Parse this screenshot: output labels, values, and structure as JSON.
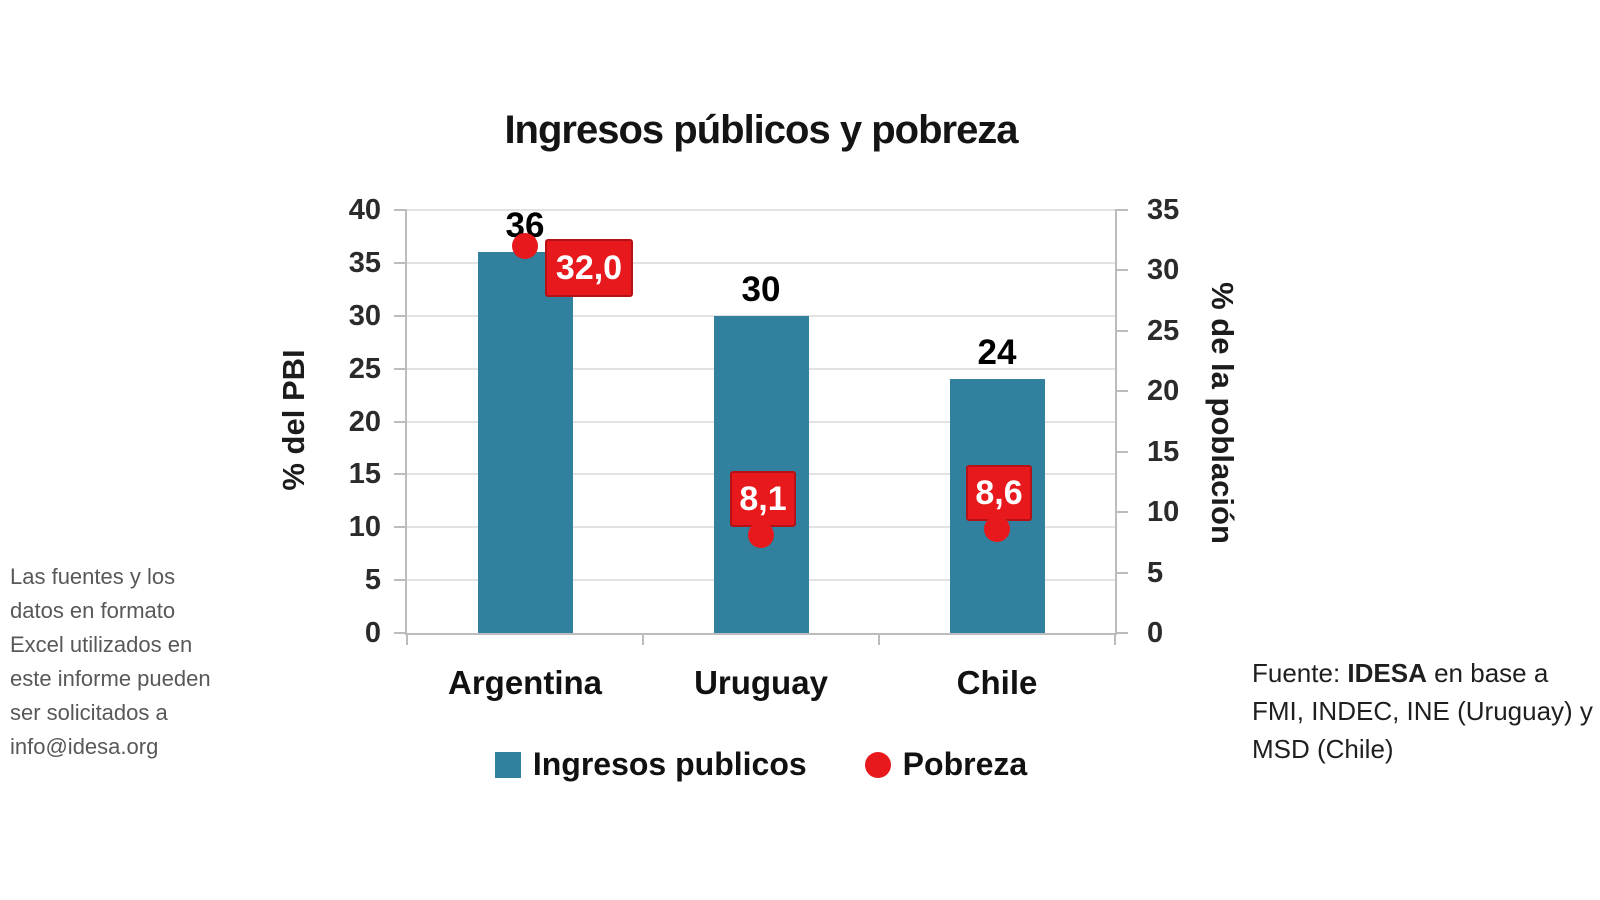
{
  "title": "Ingresos públicos y pobreza",
  "left_note": "Las fuentes y los\ndatos en formato\nExcel utilizados en\neste informe pueden\nser solicitados a\ninfo@idesa.org",
  "source": {
    "prefix": "Fuente: ",
    "org": "IDESA",
    "rest": " en base a FMI, INDEC, INE (Uruguay) y MSD (Chile)"
  },
  "chart_data": {
    "type": "bar",
    "title": "Ingresos públicos y pobreza",
    "categories": [
      "Argentina",
      "Uruguay",
      "Chile"
    ],
    "series": [
      {
        "name": "Ingresos publicos",
        "type": "bar",
        "axis": "left",
        "values": [
          36,
          30,
          24
        ],
        "labels": [
          "36",
          "30",
          "24"
        ],
        "color": "#31819E"
      },
      {
        "name": "Pobreza",
        "type": "scatter",
        "axis": "right",
        "values": [
          32.0,
          8.1,
          8.6
        ],
        "labels": [
          "32,0",
          "8,1",
          "8,6"
        ],
        "color": "#E8191D",
        "label_border_color": "#B61116",
        "label_placement": [
          "right",
          "above",
          "above"
        ]
      }
    ],
    "left_axis": {
      "title": "% del PBI",
      "min": 0,
      "max": 40,
      "ticks": [
        0,
        5,
        10,
        15,
        20,
        25,
        30,
        35,
        40
      ]
    },
    "right_axis": {
      "title": "% de la población",
      "min": 0,
      "max": 35,
      "ticks": [
        0,
        5,
        10,
        15,
        20,
        25,
        30,
        35
      ]
    },
    "grid": true,
    "legend_position": "bottom"
  }
}
